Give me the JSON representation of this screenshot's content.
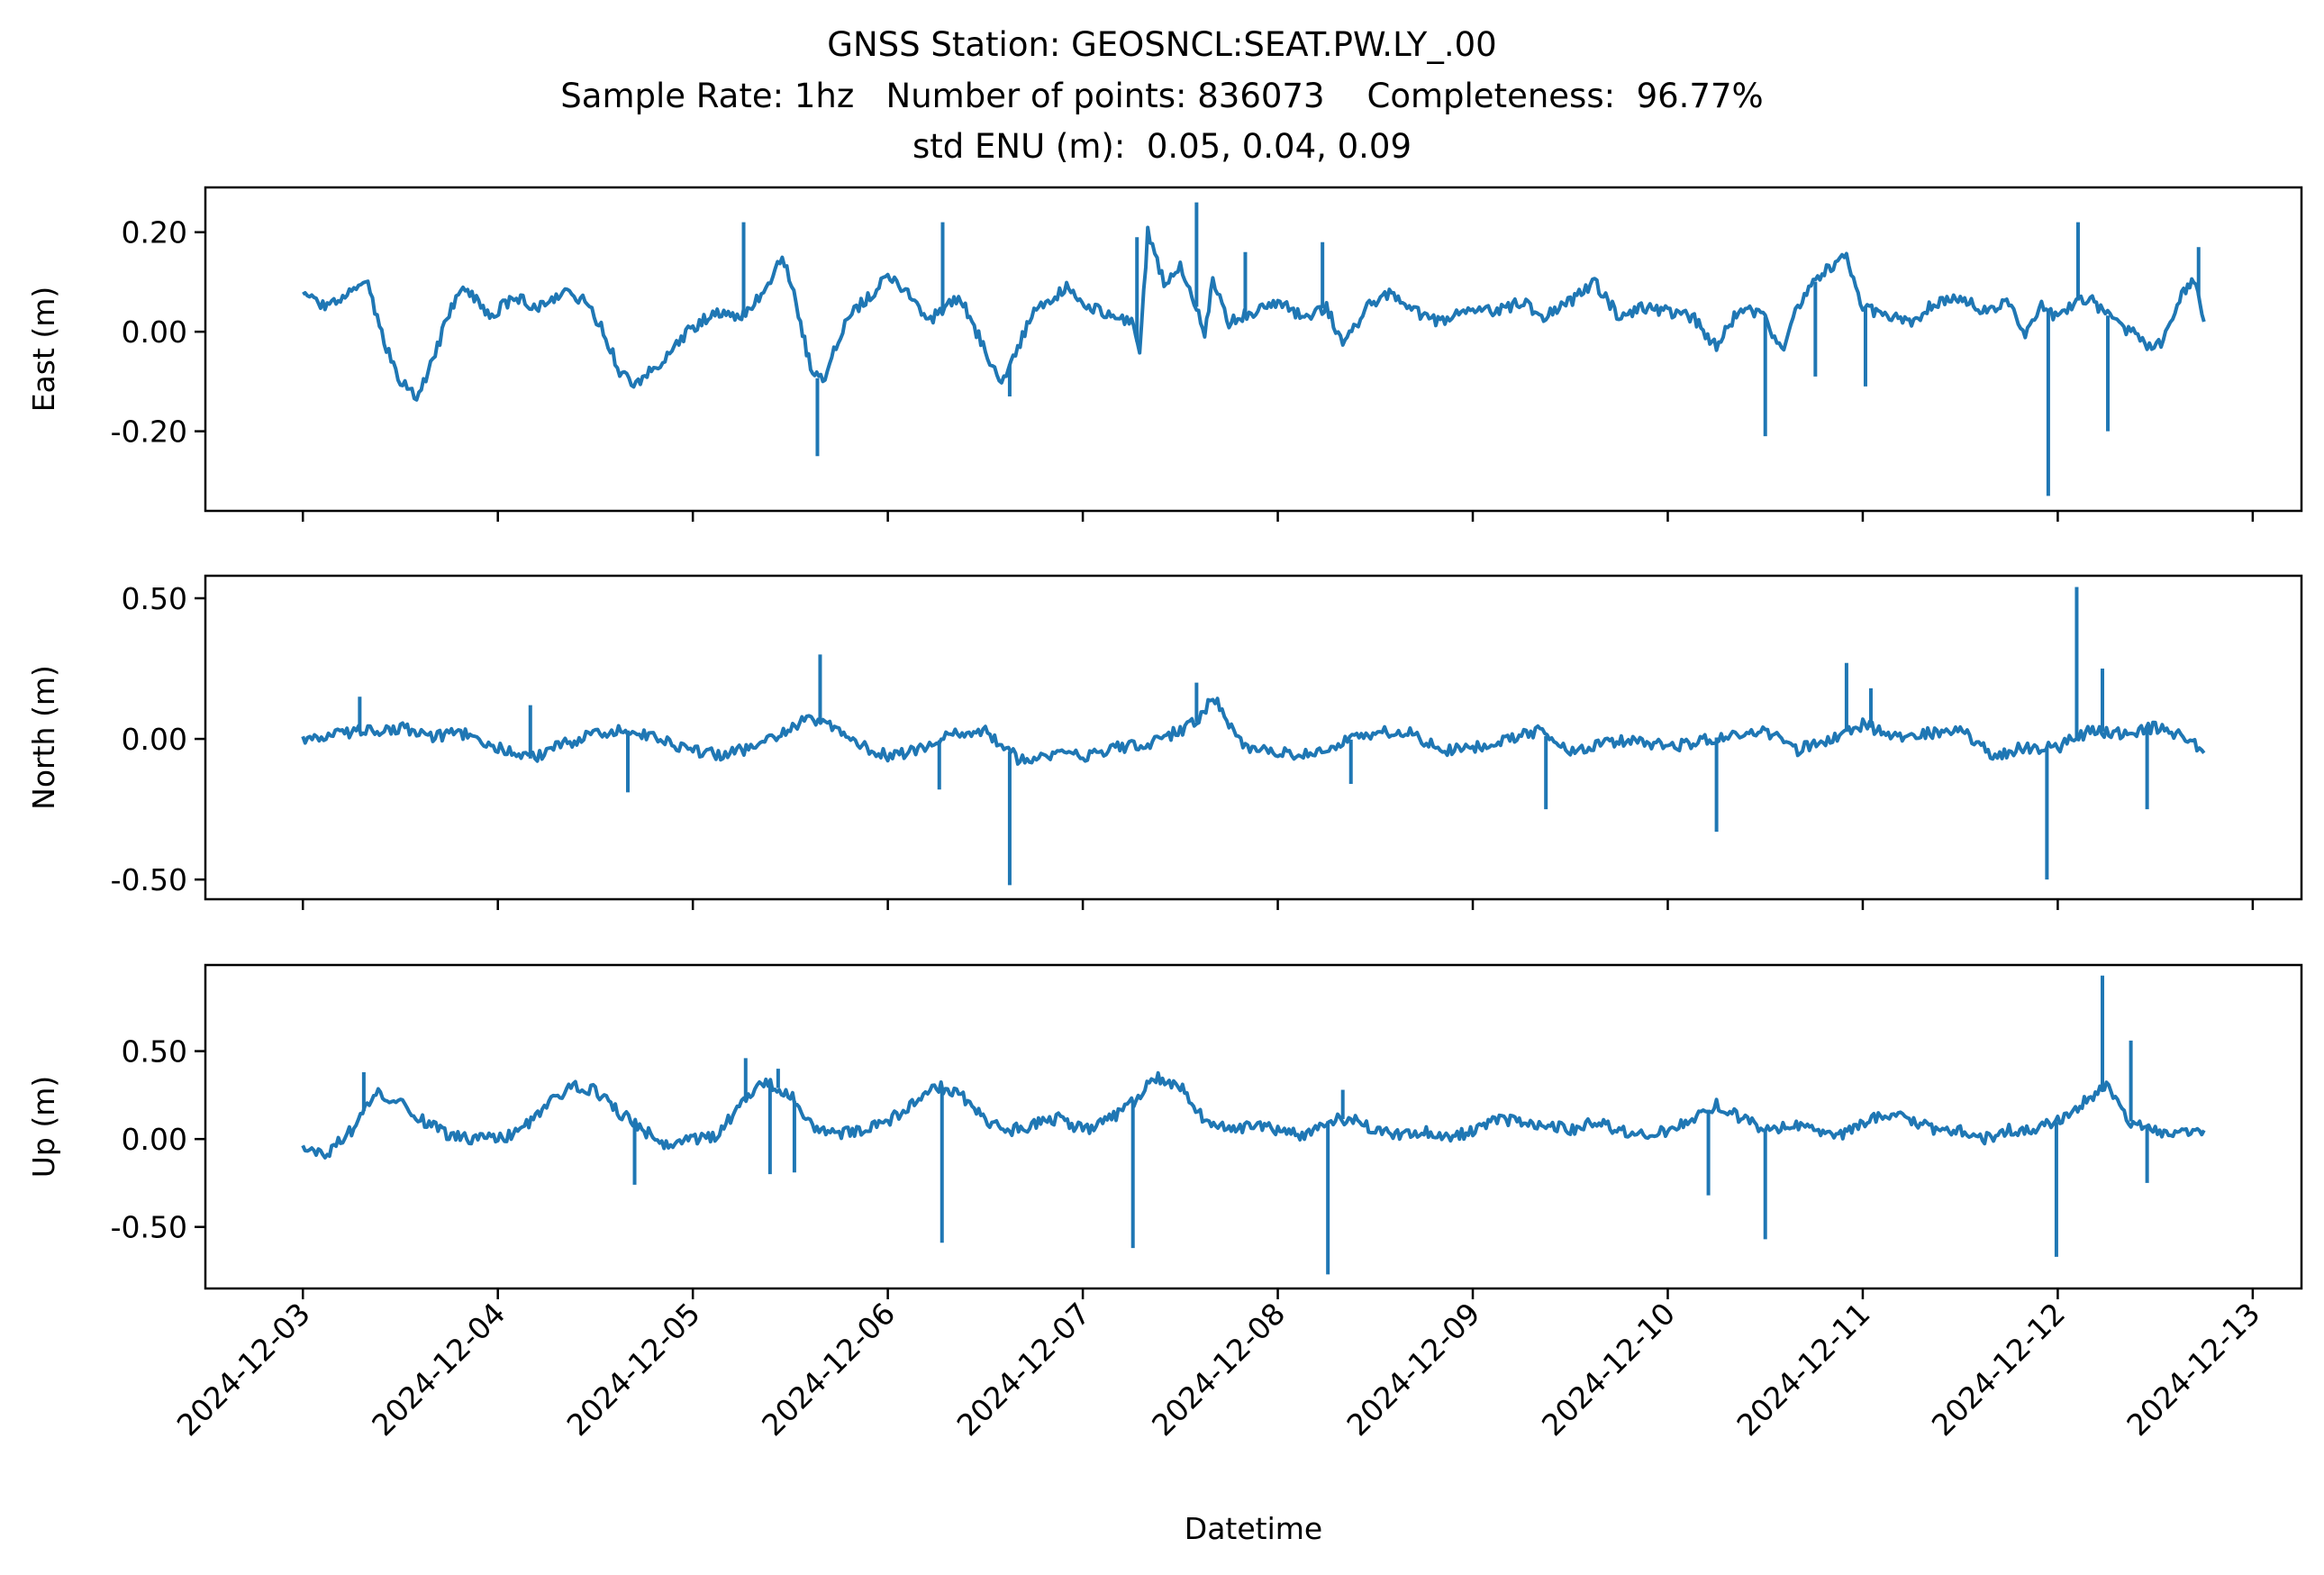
{
  "title_lines": [
    "GNSS Station: GEOSNCL:SEAT.PW.LY_.00",
    "Sample Rate: 1hz   Number of points: 836073    Completeness:  96.77%",
    "std ENU (m):  0.05, 0.04, 0.09"
  ],
  "chart_data": {
    "type": "line",
    "xlabel": "Datetime",
    "x_tick_labels": [
      "2024-12-03",
      "2024-12-04",
      "2024-12-05",
      "2024-12-06",
      "2024-12-07",
      "2024-12-08",
      "2024-12-09",
      "2024-12-10",
      "2024-12-11",
      "2024-12-12",
      "2024-12-13"
    ],
    "xlim": [
      "2024-12-02T12:00",
      "2024-12-13T06:00"
    ],
    "line_color": "#1f77b4",
    "panels": [
      {
        "ylabel": "East (m)",
        "ylim": [
          -0.36,
          0.29
        ],
        "yticks": [
          0.2,
          0.0,
          -0.2
        ],
        "ytick_labels": [
          "0.20",
          "0.00",
          "-0.20"
        ],
        "series": [
          {
            "x": [
              "2024-12-03T00:00",
              "2024-12-03T03:00",
              "2024-12-03T06:00",
              "2024-12-03T08:00",
              "2024-12-03T10:00",
              "2024-12-03T12:00",
              "2024-12-03T14:00",
              "2024-12-03T16:00",
              "2024-12-03T18:00",
              "2024-12-03T20:00",
              "2024-12-03T23:00",
              "2024-12-04T02:00",
              "2024-12-04T05:00",
              "2024-12-04T08:00",
              "2024-12-04T11:00",
              "2024-12-04T13:00",
              "2024-12-04T15:00",
              "2024-12-04T17:00",
              "2024-12-04T20:00",
              "2024-12-05T00:00",
              "2024-12-05T03:00",
              "2024-12-05T06:00",
              "2024-12-05T07:00",
              "2024-12-05T09:00",
              "2024-12-05T11:00",
              "2024-12-05T13:00",
              "2024-12-05T14:00",
              "2024-12-05T15:00",
              "2024-12-05T16:00",
              "2024-12-05T19:00",
              "2024-12-05T21:00",
              "2024-12-06T00:00",
              "2024-12-06T03:00",
              "2024-12-06T05:00",
              "2024-12-06T07:00",
              "2024-12-06T09:00",
              "2024-12-06T12:00",
              "2024-12-06T14:00",
              "2024-12-06T16:00",
              "2024-12-06T18:00",
              "2024-12-06T20:00",
              "2024-12-06T22:00",
              "2024-12-07T01:00",
              "2024-12-07T04:00",
              "2024-12-07T06:00",
              "2024-12-07T07:00",
              "2024-12-07T08:00",
              "2024-12-07T10:00",
              "2024-12-07T12:00",
              "2024-12-07T14:00",
              "2024-12-07T15:00",
              "2024-12-07T16:00",
              "2024-12-07T18:00",
              "2024-12-07T21:00",
              "2024-12-08T00:00",
              "2024-12-08T03:00",
              "2024-12-08T06:00",
              "2024-12-08T08:00",
              "2024-12-08T11:00",
              "2024-12-08T14:00",
              "2024-12-08T17:00",
              "2024-12-08T20:00",
              "2024-12-09T00:00",
              "2024-12-09T03:00",
              "2024-12-09T06:00",
              "2024-12-09T09:00",
              "2024-12-09T12:00",
              "2024-12-09T15:00",
              "2024-12-09T18:00",
              "2024-12-09T21:00",
              "2024-12-10T00:00",
              "2024-12-10T03:00",
              "2024-12-10T06:00",
              "2024-12-10T09:00",
              "2024-12-10T12:00",
              "2024-12-10T14:00",
              "2024-12-10T16:00",
              "2024-12-10T19:00",
              "2024-12-10T22:00",
              "2024-12-11T00:00",
              "2024-12-11T03:00",
              "2024-12-11T06:00",
              "2024-12-11T09:00",
              "2024-12-11T12:00",
              "2024-12-11T15:00",
              "2024-12-11T18:00",
              "2024-12-11T20:00",
              "2024-12-11T22:00",
              "2024-12-12T00:00",
              "2024-12-12T02:00",
              "2024-12-12T04:00",
              "2024-12-12T05:00",
              "2024-12-12T07:00",
              "2024-12-12T09:00",
              "2024-12-12T11:00",
              "2024-12-12T13:00",
              "2024-12-12T15:00",
              "2024-12-12T16:00",
              "2024-12-12T17:00",
              "2024-12-12T18:00"
            ],
            "y": [
              0.07,
              0.05,
              0.08,
              0.09,
              -0.02,
              -0.1,
              -0.13,
              -0.06,
              0.04,
              0.09,
              0.03,
              0.07,
              0.05,
              0.08,
              0.06,
              0.0,
              -0.08,
              -0.11,
              -0.06,
              0.01,
              0.04,
              0.03,
              0.05,
              0.08,
              0.16,
              0.04,
              -0.04,
              -0.09,
              -0.1,
              0.03,
              0.06,
              0.11,
              0.07,
              0.02,
              0.05,
              0.07,
              -0.04,
              -0.1,
              -0.03,
              0.04,
              0.06,
              0.09,
              0.05,
              0.03,
              0.02,
              -0.04,
              0.2,
              0.1,
              0.13,
              0.05,
              0.0,
              0.1,
              0.02,
              0.04,
              0.06,
              0.03,
              0.05,
              -0.03,
              0.05,
              0.08,
              0.04,
              0.02,
              0.05,
              0.04,
              0.06,
              0.03,
              0.06,
              0.1,
              0.03,
              0.05,
              0.04,
              0.03,
              -0.03,
              0.05,
              0.03,
              -0.04,
              0.05,
              0.12,
              0.15,
              0.05,
              0.03,
              0.02,
              0.06,
              0.07,
              0.04,
              0.06,
              0.0,
              0.05,
              0.03,
              0.06,
              0.07,
              0.05,
              0.02,
              0.0,
              -0.03,
              -0.02,
              0.07,
              0.09,
              0.1,
              0.02
            ]
          }
        ],
        "spikes": [
          {
            "x": "2024-12-05T06:15",
            "y": 0.22
          },
          {
            "x": "2024-12-05T15:20",
            "y": -0.25
          },
          {
            "x": "2024-12-06T06:45",
            "y": 0.22
          },
          {
            "x": "2024-12-06T15:00",
            "y": -0.13
          },
          {
            "x": "2024-12-07T06:40",
            "y": 0.19
          },
          {
            "x": "2024-12-07T14:00",
            "y": 0.26
          },
          {
            "x": "2024-12-07T20:00",
            "y": 0.16
          },
          {
            "x": "2024-12-08T05:30",
            "y": 0.18
          },
          {
            "x": "2024-12-10T12:00",
            "y": -0.21
          },
          {
            "x": "2024-12-10T18:10",
            "y": -0.09
          },
          {
            "x": "2024-12-11T00:20",
            "y": -0.11
          },
          {
            "x": "2024-12-11T22:50",
            "y": -0.33
          },
          {
            "x": "2024-12-12T02:30",
            "y": 0.22
          },
          {
            "x": "2024-12-12T06:10",
            "y": -0.2
          },
          {
            "x": "2024-12-12T17:20",
            "y": 0.17
          }
        ]
      },
      {
        "ylabel": "North (m)",
        "ylim": [
          -0.57,
          0.58
        ],
        "yticks": [
          0.5,
          0.0,
          -0.5
        ],
        "ytick_labels": [
          "0.50",
          "0.00",
          "-0.50"
        ],
        "series": [
          {
            "x": [
              "2024-12-03T00:00",
              "2024-12-03T04:00",
              "2024-12-03T08:00",
              "2024-12-03T12:00",
              "2024-12-03T16:00",
              "2024-12-03T20:00",
              "2024-12-04T00:00",
              "2024-12-04T04:00",
              "2024-12-04T08:00",
              "2024-12-04T12:00",
              "2024-12-04T16:00",
              "2024-12-04T20:00",
              "2024-12-05T00:00",
              "2024-12-05T04:00",
              "2024-12-05T08:00",
              "2024-12-05T12:00",
              "2024-12-05T14:00",
              "2024-12-05T16:00",
              "2024-12-05T20:00",
              "2024-12-06T00:00",
              "2024-12-06T04:00",
              "2024-12-06T08:00",
              "2024-12-06T12:00",
              "2024-12-06T16:00",
              "2024-12-06T20:00",
              "2024-12-07T00:00",
              "2024-12-07T04:00",
              "2024-12-07T08:00",
              "2024-12-07T12:00",
              "2024-12-07T14:00",
              "2024-12-07T16:00",
              "2024-12-07T20:00",
              "2024-12-08T00:00",
              "2024-12-08T04:00",
              "2024-12-08T08:00",
              "2024-12-08T12:00",
              "2024-12-08T16:00",
              "2024-12-08T20:00",
              "2024-12-09T00:00",
              "2024-12-09T04:00",
              "2024-12-09T08:00",
              "2024-12-09T12:00",
              "2024-12-09T16:00",
              "2024-12-09T20:00",
              "2024-12-10T00:00",
              "2024-12-10T04:00",
              "2024-12-10T08:00",
              "2024-12-10T12:00",
              "2024-12-10T16:00",
              "2024-12-10T20:00",
              "2024-12-11T00:00",
              "2024-12-11T04:00",
              "2024-12-11T08:00",
              "2024-12-11T12:00",
              "2024-12-11T16:00",
              "2024-12-11T20:00",
              "2024-12-12T00:00",
              "2024-12-12T04:00",
              "2024-12-12T08:00",
              "2024-12-12T12:00",
              "2024-12-12T16:00",
              "2024-12-12T18:00"
            ],
            "y": [
              0.0,
              0.02,
              0.03,
              0.04,
              0.01,
              0.02,
              -0.03,
              -0.07,
              -0.02,
              0.02,
              0.03,
              0.0,
              -0.04,
              -0.06,
              -0.02,
              0.03,
              0.08,
              0.06,
              -0.02,
              -0.06,
              -0.04,
              0.02,
              0.03,
              -0.07,
              -0.06,
              -0.06,
              -0.03,
              -0.02,
              0.03,
              0.06,
              0.15,
              -0.03,
              -0.05,
              -0.06,
              -0.01,
              0.02,
              0.03,
              -0.04,
              -0.03,
              -0.01,
              0.03,
              -0.05,
              -0.02,
              0.0,
              -0.03,
              -0.01,
              0.02,
              0.03,
              -0.04,
              0.0,
              0.05,
              0.01,
              0.02,
              0.04,
              -0.06,
              -0.03,
              -0.03,
              0.03,
              0.02,
              0.04,
              0.0,
              -0.05
            ]
          }
        ],
        "spikes": [
          {
            "x": "2024-12-03T07:00",
            "y": 0.15
          },
          {
            "x": "2024-12-04T04:00",
            "y": 0.12
          },
          {
            "x": "2024-12-04T16:00",
            "y": -0.19
          },
          {
            "x": "2024-12-05T15:40",
            "y": 0.3
          },
          {
            "x": "2024-12-06T06:20",
            "y": -0.18
          },
          {
            "x": "2024-12-06T15:00",
            "y": -0.52
          },
          {
            "x": "2024-12-07T14:00",
            "y": 0.2
          },
          {
            "x": "2024-12-08T09:00",
            "y": -0.16
          },
          {
            "x": "2024-12-09T09:00",
            "y": -0.25
          },
          {
            "x": "2024-12-10T06:00",
            "y": -0.33
          },
          {
            "x": "2024-12-10T22:00",
            "y": 0.27
          },
          {
            "x": "2024-12-11T01:00",
            "y": 0.18
          },
          {
            "x": "2024-12-11T22:40",
            "y": -0.5
          },
          {
            "x": "2024-12-12T02:20",
            "y": 0.54
          },
          {
            "x": "2024-12-12T05:30",
            "y": 0.25
          },
          {
            "x": "2024-12-12T11:00",
            "y": -0.25
          }
        ]
      },
      {
        "ylabel": "Up (m)",
        "ylim": [
          -0.85,
          0.99
        ],
        "yticks": [
          0.5,
          0.0,
          -0.5
        ],
        "ytick_labels": [
          "0.50",
          "0.00",
          "-0.50"
        ],
        "series": [
          {
            "x": [
              "2024-12-03T00:00",
              "2024-12-03T03:00",
              "2024-12-03T06:00",
              "2024-12-03T09:00",
              "2024-12-03T12:00",
              "2024-12-03T15:00",
              "2024-12-03T18:00",
              "2024-12-03T21:00",
              "2024-12-04T00:00",
              "2024-12-04T03:00",
              "2024-12-04T06:00",
              "2024-12-04T09:00",
              "2024-12-04T12:00",
              "2024-12-04T15:00",
              "2024-12-04T18:00",
              "2024-12-04T21:00",
              "2024-12-05T00:00",
              "2024-12-05T03:00",
              "2024-12-05T06:00",
              "2024-12-05T09:00",
              "2024-12-05T12:00",
              "2024-12-05T15:00",
              "2024-12-05T18:00",
              "2024-12-05T21:00",
              "2024-12-06T00:00",
              "2024-12-06T03:00",
              "2024-12-06T06:00",
              "2024-12-06T09:00",
              "2024-12-06T12:00",
              "2024-12-06T15:00",
              "2024-12-06T18:00",
              "2024-12-06T21:00",
              "2024-12-07T00:00",
              "2024-12-07T03:00",
              "2024-12-07T06:00",
              "2024-12-07T09:00",
              "2024-12-07T12:00",
              "2024-12-07T15:00",
              "2024-12-07T18:00",
              "2024-12-07T21:00",
              "2024-12-08T00:00",
              "2024-12-08T03:00",
              "2024-12-08T06:00",
              "2024-12-08T09:00",
              "2024-12-08T12:00",
              "2024-12-08T15:00",
              "2024-12-08T18:00",
              "2024-12-08T21:00",
              "2024-12-09T00:00",
              "2024-12-09T03:00",
              "2024-12-09T06:00",
              "2024-12-09T09:00",
              "2024-12-09T12:00",
              "2024-12-09T15:00",
              "2024-12-09T18:00",
              "2024-12-09T21:00",
              "2024-12-10T00:00",
              "2024-12-10T03:00",
              "2024-12-10T06:00",
              "2024-12-10T09:00",
              "2024-12-10T12:00",
              "2024-12-10T15:00",
              "2024-12-10T18:00",
              "2024-12-10T21:00",
              "2024-12-11T00:00",
              "2024-12-11T03:00",
              "2024-12-11T06:00",
              "2024-12-11T09:00",
              "2024-12-11T12:00",
              "2024-12-11T15:00",
              "2024-12-11T18:00",
              "2024-12-11T21:00",
              "2024-12-12T00:00",
              "2024-12-12T03:00",
              "2024-12-12T06:00",
              "2024-12-12T09:00",
              "2024-12-12T12:00",
              "2024-12-12T15:00",
              "2024-12-12T18:00"
            ],
            "y": [
              -0.05,
              -0.08,
              0.05,
              0.27,
              0.2,
              0.1,
              0.02,
              0.0,
              0.0,
              0.05,
              0.2,
              0.3,
              0.28,
              0.15,
              0.05,
              -0.05,
              0.0,
              0.02,
              0.2,
              0.33,
              0.25,
              0.05,
              0.03,
              0.05,
              0.1,
              0.2,
              0.3,
              0.25,
              0.1,
              0.05,
              0.08,
              0.12,
              0.05,
              0.1,
              0.2,
              0.35,
              0.3,
              0.1,
              0.05,
              0.08,
              0.05,
              0.02,
              0.1,
              0.12,
              0.05,
              0.02,
              0.05,
              0.0,
              0.05,
              0.12,
              0.1,
              0.08,
              0.05,
              0.1,
              0.05,
              0.02,
              0.05,
              0.1,
              0.2,
              0.12,
              0.05,
              0.08,
              0.05,
              0.02,
              0.08,
              0.15,
              0.1,
              0.05,
              0.05,
              0.0,
              0.05,
              0.05,
              0.1,
              0.2,
              0.3,
              0.1,
              0.05,
              0.03,
              0.05
            ]
          }
        ],
        "spikes": [
          {
            "x": "2024-12-03T07:30",
            "y": 0.38
          },
          {
            "x": "2024-12-04T16:50",
            "y": -0.26
          },
          {
            "x": "2024-12-05T06:30",
            "y": 0.46
          },
          {
            "x": "2024-12-05T09:30",
            "y": -0.2
          },
          {
            "x": "2024-12-05T10:30",
            "y": 0.4
          },
          {
            "x": "2024-12-05T12:30",
            "y": -0.19
          },
          {
            "x": "2024-12-06T06:40",
            "y": -0.59
          },
          {
            "x": "2024-12-07T06:10",
            "y": -0.62
          },
          {
            "x": "2024-12-08T06:10",
            "y": -0.77
          },
          {
            "x": "2024-12-08T08:00",
            "y": 0.28
          },
          {
            "x": "2024-12-10T05:00",
            "y": -0.32
          },
          {
            "x": "2024-12-10T12:00",
            "y": -0.57
          },
          {
            "x": "2024-12-11T23:50",
            "y": -0.67
          },
          {
            "x": "2024-12-12T05:30",
            "y": 0.93
          },
          {
            "x": "2024-12-12T09:00",
            "y": 0.56
          },
          {
            "x": "2024-12-12T11:00",
            "y": -0.25
          }
        ]
      }
    ]
  }
}
